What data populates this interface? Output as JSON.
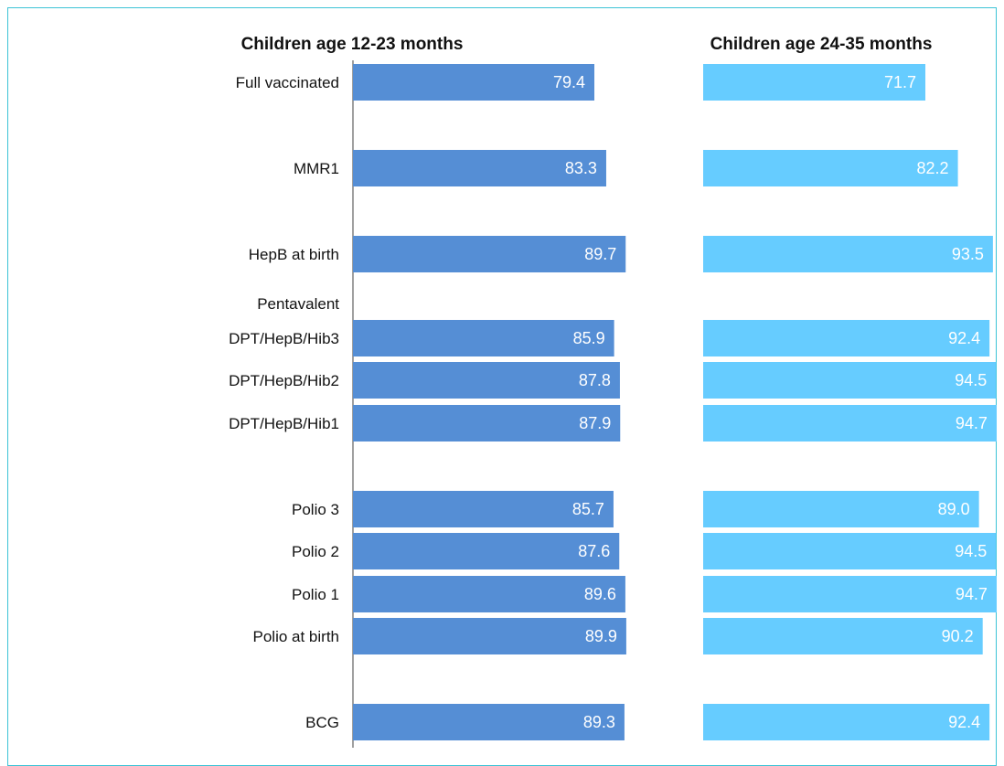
{
  "chart_data": {
    "type": "bar",
    "orientation": "horizontal",
    "panels": [
      {
        "title": "Children age 12-23 months",
        "color": "#558ed5"
      },
      {
        "title": "Children age 24-35 months",
        "color": "#66ccff"
      }
    ],
    "group_label": "Pentavalent",
    "categories": [
      "Full vaccinated",
      "MMR1",
      "HepB at birth",
      "DPT/HepB/Hib3",
      "DPT/HepB/Hib2",
      "DPT/HepB/Hib1",
      "Polio 3",
      "Polio 2",
      "Polio 1",
      "Polio at birth",
      "BCG"
    ],
    "series": [
      {
        "name": "Children age 12-23 months",
        "values": [
          79.4,
          83.3,
          89.7,
          85.9,
          87.8,
          87.9,
          85.7,
          87.6,
          89.6,
          89.9,
          89.3
        ],
        "labels": [
          "79.4",
          "83.3",
          "89.7",
          "85.9",
          "87.8",
          "87.9",
          "85.7",
          "87.6",
          "89.6",
          "89.9",
          "89.3"
        ]
      },
      {
        "name": "Children age 24-35 months",
        "values": [
          71.7,
          82.2,
          93.5,
          92.4,
          94.5,
          94.7,
          89.0,
          94.5,
          94.7,
          90.2,
          92.4
        ],
        "labels": [
          "71.7",
          "82.2",
          "93.5",
          "92.4",
          "94.5",
          "94.7",
          "89.0",
          "94.5",
          "94.7",
          "90.2",
          "92.4"
        ]
      }
    ],
    "xlim": [
      0,
      100
    ],
    "grid": false,
    "legend": "none"
  }
}
